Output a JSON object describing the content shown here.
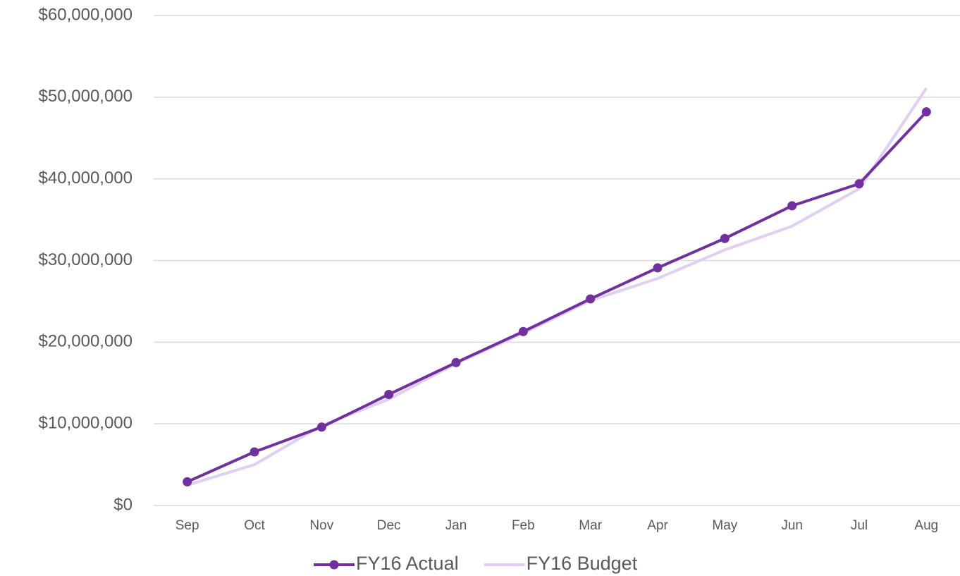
{
  "chart_data": {
    "type": "line",
    "categories": [
      "Sep",
      "Oct",
      "Nov",
      "Dec",
      "Jan",
      "Feb",
      "Mar",
      "Apr",
      "May",
      "Jun",
      "Jul",
      "Aug"
    ],
    "series": [
      {
        "name": "FY16 Actual",
        "color": "#7030a0",
        "marker": true,
        "values": [
          2900000,
          6560000,
          9600000,
          13600000,
          17500000,
          21300000,
          25300000,
          29100000,
          32700000,
          36700000,
          39400000,
          48200000
        ]
      },
      {
        "name": "FY16 Budget",
        "color": "#e0cff2",
        "marker": false,
        "values": [
          2500000,
          5000000,
          9800000,
          13000000,
          17400000,
          21100000,
          25100000,
          27800000,
          31300000,
          34200000,
          38800000,
          51100000
        ]
      }
    ],
    "ylim": [
      0,
      60000000
    ],
    "yticks": [
      {
        "value": 0,
        "label": "$0"
      },
      {
        "value": 10000000,
        "label": "$10,000,000"
      },
      {
        "value": 20000000,
        "label": "$20,000,000"
      },
      {
        "value": 30000000,
        "label": "$30,000,000"
      },
      {
        "value": 40000000,
        "label": "$40,000,000"
      },
      {
        "value": 50000000,
        "label": "$50,000,000"
      },
      {
        "value": 60000000,
        "label": "$60,000,000"
      }
    ],
    "grid": true,
    "legend": "bottom"
  }
}
